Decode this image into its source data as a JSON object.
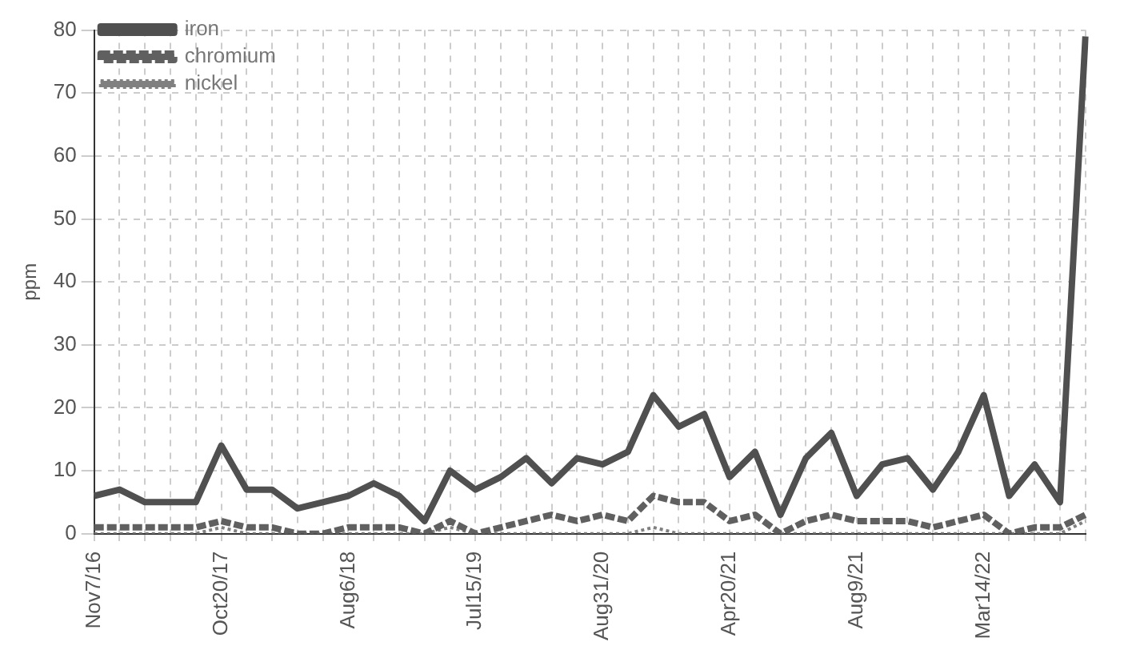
{
  "chart_data": {
    "type": "line",
    "ylabel": "ppm",
    "categories": [
      "Nov7/16",
      null,
      null,
      null,
      null,
      "Oct20/17",
      null,
      null,
      null,
      null,
      "Aug6/18",
      null,
      null,
      null,
      null,
      "Jul15/19",
      null,
      null,
      null,
      null,
      "Aug31/20",
      null,
      null,
      null,
      null,
      "Apr20/21",
      null,
      null,
      null,
      null,
      "Aug9/21",
      null,
      null,
      null,
      null,
      "Mar14/22",
      null,
      null,
      null,
      null
    ],
    "series": [
      {
        "name": "iron",
        "color": "#505050",
        "line_style": "solid",
        "values": [
          6,
          7,
          5,
          5,
          5,
          14,
          7,
          7,
          4,
          5,
          6,
          8,
          6,
          2,
          10,
          7,
          9,
          12,
          8,
          12,
          11,
          13,
          22,
          17,
          19,
          9,
          13,
          3,
          12,
          16,
          6,
          11,
          12,
          7,
          13,
          22,
          6,
          11,
          5,
          79
        ]
      },
      {
        "name": "chromium",
        "color": "#606060",
        "line_style": "dashed",
        "values": [
          1,
          1,
          1,
          1,
          1,
          2,
          1,
          1,
          0,
          0,
          1,
          1,
          1,
          0,
          2,
          0,
          1,
          2,
          3,
          2,
          3,
          2,
          6,
          5,
          5,
          2,
          3,
          0,
          2,
          3,
          2,
          2,
          2,
          1,
          2,
          3,
          0,
          1,
          1,
          3
        ]
      },
      {
        "name": "nickel",
        "color": "#808080",
        "line_style": "dotted",
        "values": [
          0,
          0,
          0,
          0,
          0,
          1,
          0,
          0,
          0,
          0,
          0,
          0,
          0,
          0,
          1,
          0,
          0,
          0,
          0,
          0,
          0,
          0,
          1,
          0,
          0,
          0,
          0,
          0,
          0,
          0,
          0,
          0,
          0,
          0,
          0,
          0,
          0,
          0,
          0,
          2
        ]
      }
    ],
    "ylim": [
      0,
      80
    ],
    "yticks": [
      0,
      10,
      20,
      30,
      40,
      50,
      60,
      70,
      80
    ],
    "grid": true,
    "legend": "top left",
    "marker": "none"
  }
}
